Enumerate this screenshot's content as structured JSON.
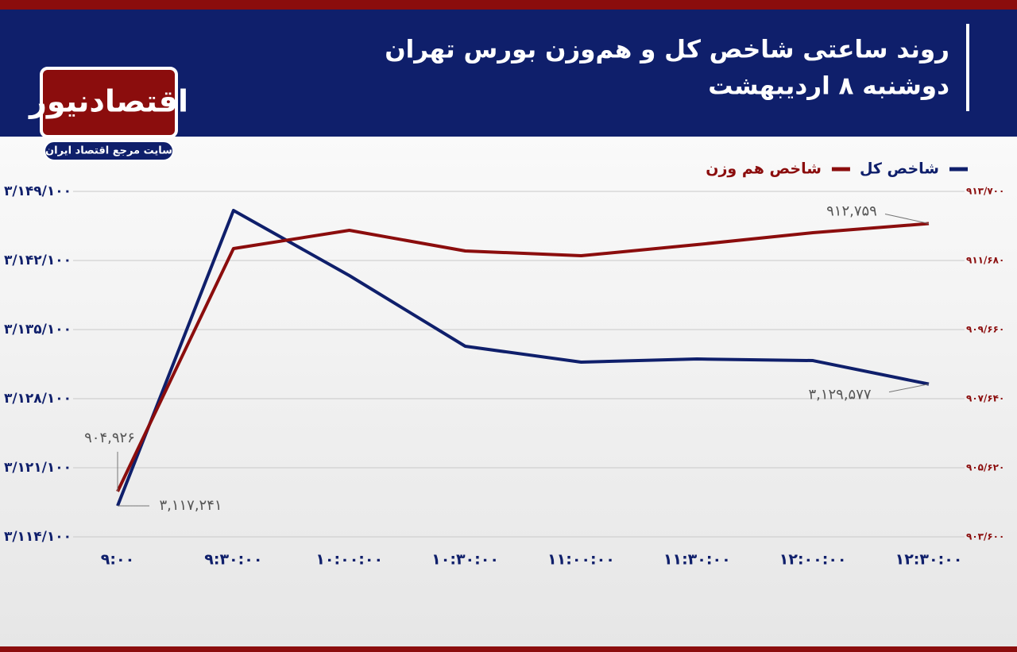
{
  "logo": {
    "name": "اقتصادنیوز",
    "tagline": "سایت مرجع اقتصاد ایران"
  },
  "chart_data": {
    "type": "line",
    "title": "روند ساعتی شاخص کل و هم‌وزن بورس تهران",
    "subtitle": "دوشنبه ۸ اردیبهشت",
    "categories": [
      "۹:۰۰",
      "۹:۳۰:۰۰",
      "۱۰:۰۰:۰۰",
      "۱۰:۳۰:۰۰",
      "۱۱:۰۰:۰۰",
      "۱۱:۳۰:۰۰",
      "۱۲:۰۰:۰۰",
      "۱۲:۳۰:۰۰"
    ],
    "series": [
      {
        "name": "شاخص کل",
        "color": "#0f1f6b",
        "axis": "y",
        "values": [
          3117241,
          3147170,
          3140570,
          3133410,
          3131800,
          3132120,
          3131960,
          3129577
        ],
        "value_labels": [
          "۳,۱۱۷,۲۴۱",
          null,
          null,
          null,
          null,
          null,
          null,
          "۳,۱۲۹,۵۷۷"
        ]
      },
      {
        "name": "شاخص هم وزن",
        "color": "#8b0d0d",
        "axis": "y2",
        "values": [
          904926,
          912028,
          912562,
          911959,
          911819,
          912144,
          912493,
          912759
        ],
        "value_labels": [
          "۹۰۴,۹۲۶",
          null,
          null,
          null,
          null,
          null,
          null,
          "۹۱۲,۷۵۹"
        ]
      }
    ],
    "ylim": [
      3114100,
      3149100
    ],
    "yticks": [
      {
        "value": 3114100,
        "label": "۳/۱۱۴/۱۰۰"
      },
      {
        "value": 3121100,
        "label": "۳/۱۲۱/۱۰۰"
      },
      {
        "value": 3128100,
        "label": "۳/۱۲۸/۱۰۰"
      },
      {
        "value": 3135100,
        "label": "۳/۱۳۵/۱۰۰"
      },
      {
        "value": 3142100,
        "label": "۳/۱۴۲/۱۰۰"
      },
      {
        "value": 3149100,
        "label": "۳/۱۴۹/۱۰۰"
      }
    ],
    "y2lim": [
      903600,
      913700
    ],
    "y2ticks": [
      {
        "value": 903600,
        "label": "۹۰۳/۶۰۰"
      },
      {
        "value": 905620,
        "label": "۹۰۵/۶۲۰"
      },
      {
        "value": 907640,
        "label": "۹۰۷/۶۴۰"
      },
      {
        "value": 909660,
        "label": "۹۰۹/۶۶۰"
      },
      {
        "value": 911680,
        "label": "۹۱۱/۶۸۰"
      },
      {
        "value": 913700,
        "label": "۹۱۳/۷۰۰"
      }
    ],
    "grid": true,
    "legend": "top-right"
  }
}
